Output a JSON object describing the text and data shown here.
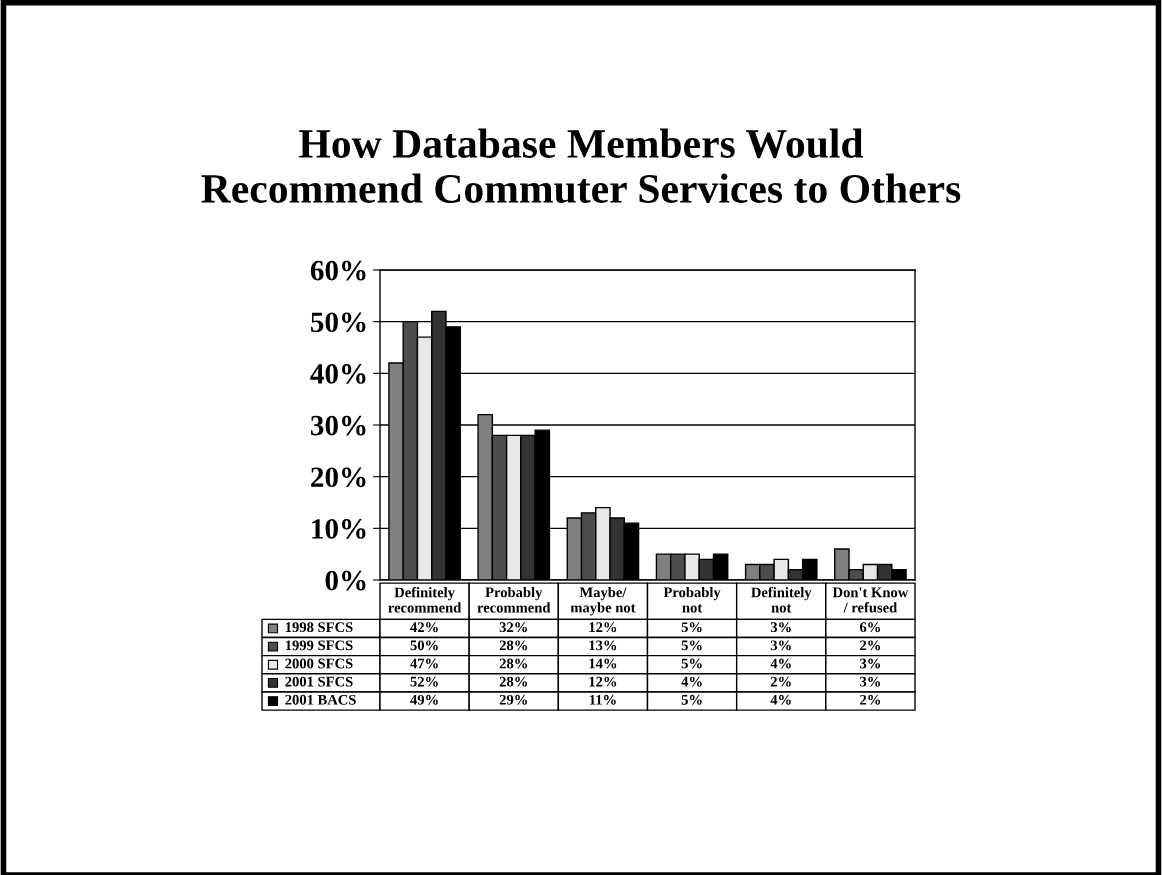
{
  "chart_data": {
    "type": "bar",
    "title": "How Database Members Would\nRecommend Commuter Services to Others",
    "categories": [
      "Definitely recommend",
      "Probably recommend",
      "Maybe/ maybe not",
      "Probably not",
      "Definitely not",
      "Don't Know / refused"
    ],
    "series": [
      {
        "name": "1998 SFCS",
        "color": "#808080",
        "values": [
          42,
          32,
          12,
          5,
          3,
          6
        ],
        "value_labels": [
          "42%",
          "32%",
          "12%",
          "5%",
          "3%",
          "6%"
        ]
      },
      {
        "name": "1999 SFCS",
        "color": "#4d4d4d",
        "values": [
          50,
          28,
          13,
          5,
          3,
          2
        ],
        "value_labels": [
          "50%",
          "28%",
          "13%",
          "5%",
          "3%",
          "2%"
        ]
      },
      {
        "name": "2000 SFCS",
        "color": "#e8e8e8",
        "values": [
          47,
          28,
          14,
          5,
          4,
          3
        ],
        "value_labels": [
          "47%",
          "28%",
          "14%",
          "5%",
          "4%",
          "3%"
        ]
      },
      {
        "name": "2001 SFCS",
        "color": "#333333",
        "values": [
          52,
          28,
          12,
          4,
          2,
          3
        ],
        "value_labels": [
          "52%",
          "28%",
          "12%",
          "4%",
          "2%",
          "3%"
        ]
      },
      {
        "name": "2001 BACS",
        "color": "#000000",
        "values": [
          49,
          29,
          11,
          5,
          4,
          2
        ],
        "value_labels": [
          "49%",
          "29%",
          "11%",
          "5%",
          "4%",
          "2%"
        ]
      }
    ],
    "ylim": [
      0,
      60
    ],
    "yticks": [
      {
        "value": 0,
        "label": "0%"
      },
      {
        "value": 10,
        "label": "10%"
      },
      {
        "value": 20,
        "label": "20%"
      },
      {
        "value": 30,
        "label": "30%"
      },
      {
        "value": 40,
        "label": "40%"
      },
      {
        "value": 50,
        "label": "50%"
      },
      {
        "value": 60,
        "label": "60%"
      }
    ],
    "grid": "y",
    "legend": "bottom left"
  }
}
